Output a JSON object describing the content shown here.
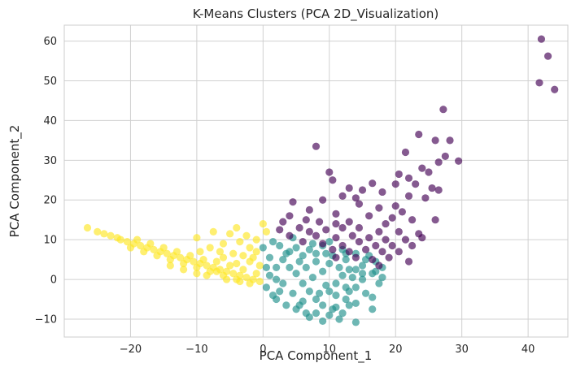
{
  "chart_data": {
    "type": "scatter",
    "title": "K-Means Clusters (PCA 2D_Visualization)",
    "xlabel": "PCA Component_1",
    "ylabel": "PCA Component_2",
    "xlim": [
      -30,
      46
    ],
    "ylim": [
      -14.5,
      64
    ],
    "xticks": [
      -20,
      -10,
      0,
      10,
      20,
      30,
      40
    ],
    "yticks": [
      -10,
      0,
      10,
      20,
      30,
      40,
      50,
      60
    ],
    "grid": true,
    "legend": "none",
    "series": [
      {
        "color": "#440154",
        "points": [
          [
            42,
            60.5
          ],
          [
            43,
            56.2
          ],
          [
            41.7,
            49.5
          ],
          [
            44,
            47.8
          ],
          [
            27.2,
            42.8
          ],
          [
            23.5,
            36.5
          ],
          [
            26,
            35
          ],
          [
            28.2,
            35
          ],
          [
            27.5,
            31
          ],
          [
            29.5,
            29.8
          ],
          [
            26.5,
            29.5
          ],
          [
            8,
            33.5
          ],
          [
            21.5,
            32
          ],
          [
            24,
            28
          ],
          [
            25,
            27
          ],
          [
            20.5,
            26.5
          ],
          [
            22,
            25.5
          ],
          [
            10,
            27
          ],
          [
            16.5,
            24.2
          ],
          [
            20,
            24
          ],
          [
            23,
            24
          ],
          [
            25.5,
            23
          ],
          [
            10.5,
            25
          ],
          [
            13,
            23
          ],
          [
            15,
            22.5
          ],
          [
            18,
            22
          ],
          [
            14,
            20.5
          ],
          [
            12,
            21
          ],
          [
            22,
            21
          ],
          [
            24.5,
            20.5
          ],
          [
            26.5,
            22.5
          ],
          [
            9,
            20
          ],
          [
            4.5,
            19.5
          ],
          [
            14.5,
            19
          ],
          [
            17.5,
            18
          ],
          [
            20,
            18.5
          ],
          [
            21,
            17
          ],
          [
            7,
            17.5
          ],
          [
            11,
            16.5
          ],
          [
            16,
            16
          ],
          [
            19.5,
            15.5
          ],
          [
            22.5,
            15
          ],
          [
            26,
            15
          ],
          [
            4,
            16
          ],
          [
            6.5,
            15
          ],
          [
            8.5,
            14.5
          ],
          [
            11,
            14
          ],
          [
            13,
            14.5
          ],
          [
            18.5,
            14
          ],
          [
            3,
            14.5
          ],
          [
            2.5,
            12.5
          ],
          [
            5.5,
            13
          ],
          [
            7,
            12
          ],
          [
            9.5,
            12.5
          ],
          [
            12,
            13
          ],
          [
            14.5,
            13
          ],
          [
            17.5,
            12
          ],
          [
            20.5,
            12
          ],
          [
            23.5,
            11.5
          ],
          [
            4,
            11
          ],
          [
            8,
            11
          ],
          [
            11,
            10.5
          ],
          [
            13.5,
            11
          ],
          [
            16,
            10.5
          ],
          [
            18.5,
            10
          ],
          [
            21.5,
            10
          ],
          [
            24,
            10.5
          ],
          [
            6,
            9.5
          ],
          [
            9,
            9
          ],
          [
            12,
            8.5
          ],
          [
            14.5,
            9.5
          ],
          [
            17,
            8.5
          ],
          [
            19.5,
            8.5
          ],
          [
            22.5,
            8.5
          ],
          [
            10.5,
            7.5
          ],
          [
            13,
            7
          ],
          [
            15.5,
            7.5
          ],
          [
            18,
            7
          ],
          [
            20.5,
            7
          ],
          [
            11,
            5.5
          ],
          [
            14,
            5.5
          ],
          [
            16.5,
            5
          ],
          [
            19,
            5.5
          ],
          [
            17.5,
            3.5
          ],
          [
            22,
            4.5
          ]
        ]
      },
      {
        "color": "#21918c",
        "points": [
          [
            2.5,
            8.5
          ],
          [
            0,
            8
          ],
          [
            1.5,
            9.5
          ],
          [
            4.5,
            10.5
          ],
          [
            5,
            8
          ],
          [
            7.5,
            9
          ],
          [
            9,
            8.5
          ],
          [
            10,
            9.5
          ],
          [
            12,
            7.5
          ],
          [
            14,
            6.5
          ],
          [
            3.5,
            6.5
          ],
          [
            6,
            6
          ],
          [
            8,
            6.5
          ],
          [
            10.5,
            6
          ],
          [
            16,
            6
          ],
          [
            12.5,
            5
          ],
          [
            17,
            4.5
          ],
          [
            18,
            3
          ],
          [
            15,
            3.5
          ],
          [
            14,
            2.5
          ],
          [
            16.5,
            1.5
          ],
          [
            18,
            0.5
          ],
          [
            15,
            0
          ],
          [
            17.5,
            -1
          ],
          [
            14,
            -2
          ],
          [
            15.5,
            -3.5
          ],
          [
            13,
            -3
          ],
          [
            12.5,
            -5
          ],
          [
            14,
            -6
          ],
          [
            16.5,
            -7.5
          ],
          [
            11,
            -7
          ],
          [
            12,
            -8.5
          ],
          [
            10,
            -9
          ],
          [
            11.5,
            -10
          ],
          [
            14,
            -10.8
          ],
          [
            8,
            -8.5
          ],
          [
            7,
            -9.5
          ],
          [
            9,
            -10.5
          ],
          [
            1,
            1
          ],
          [
            0.5,
            -2
          ],
          [
            1.5,
            -4
          ],
          [
            2,
            3
          ],
          [
            3,
            5
          ],
          [
            2,
            -5
          ],
          [
            3.5,
            -6.5
          ],
          [
            5,
            -7.5
          ],
          [
            6.5,
            -8.5
          ],
          [
            4,
            3
          ],
          [
            5,
            1.5
          ],
          [
            6,
            -1
          ],
          [
            7,
            -3
          ],
          [
            8,
            -5
          ],
          [
            9,
            -6.5
          ],
          [
            10,
            -3
          ],
          [
            11,
            -1
          ],
          [
            12,
            1
          ],
          [
            13,
            2.5
          ],
          [
            9,
            2
          ],
          [
            10,
            4
          ],
          [
            8,
            4.5
          ],
          [
            6.5,
            3
          ],
          [
            4.5,
            -3.5
          ],
          [
            3,
            -1
          ],
          [
            7.5,
            0.5
          ],
          [
            9.5,
            -1.5
          ],
          [
            11,
            -4
          ],
          [
            12.5,
            -2
          ],
          [
            13.5,
            0.5
          ],
          [
            15,
            1.5
          ],
          [
            11.5,
            3
          ],
          [
            8.5,
            -3.5
          ],
          [
            6,
            -5.5
          ],
          [
            2.5,
            -3
          ],
          [
            16.5,
            -4.5
          ],
          [
            13,
            -6.5
          ],
          [
            10.5,
            -7.5
          ],
          [
            5.5,
            -6.5
          ],
          [
            9.5,
            6.5
          ],
          [
            7,
            7.5
          ],
          [
            4,
            7
          ],
          [
            1,
            5.5
          ],
          [
            0.5,
            3
          ],
          [
            2,
            0
          ],
          [
            5.5,
            4.5
          ],
          [
            12.5,
            6.5
          ],
          [
            15.5,
            5
          ],
          [
            17,
            2
          ]
        ]
      },
      {
        "color": "#fde725",
        "points": [
          [
            -26.5,
            13
          ],
          [
            -25,
            12
          ],
          [
            -24,
            11.5
          ],
          [
            -23,
            11
          ],
          [
            -22,
            10.5
          ],
          [
            -21.5,
            10
          ],
          [
            -20.5,
            9.5
          ],
          [
            -19.5,
            9
          ],
          [
            -18.5,
            8.5
          ],
          [
            -17.5,
            8
          ],
          [
            -16.5,
            7.5
          ],
          [
            -15.5,
            7
          ],
          [
            -14.5,
            6.5
          ],
          [
            -13.5,
            6
          ],
          [
            -12.5,
            5.5
          ],
          [
            -11.5,
            5
          ],
          [
            -10.5,
            4.5
          ],
          [
            -9.5,
            4
          ],
          [
            -8.5,
            3.5
          ],
          [
            -7.5,
            3
          ],
          [
            -6.5,
            2.5
          ],
          [
            -5.5,
            2
          ],
          [
            -4.5,
            1.5
          ],
          [
            -3.5,
            1
          ],
          [
            -2.5,
            0.5
          ],
          [
            -1.5,
            0
          ],
          [
            -0.5,
            -0.5
          ],
          [
            -20,
            8
          ],
          [
            -18,
            7
          ],
          [
            -16,
            6
          ],
          [
            -14,
            5
          ],
          [
            -12,
            4
          ],
          [
            -10,
            3
          ],
          [
            -8,
            2
          ],
          [
            -6,
            1
          ],
          [
            -4,
            0
          ],
          [
            -2,
            -1
          ],
          [
            -11,
            6
          ],
          [
            -9,
            5
          ],
          [
            -7,
            4.5
          ],
          [
            -5,
            3.5
          ],
          [
            -3,
            2.5
          ],
          [
            -1,
            1.5
          ],
          [
            -13,
            7
          ],
          [
            -15,
            8
          ],
          [
            -17,
            9
          ],
          [
            -19,
            10
          ],
          [
            -10,
            10.5
          ],
          [
            -7.5,
            12
          ],
          [
            -6,
            9
          ],
          [
            -5,
            11.5
          ],
          [
            -4.5,
            6.5
          ],
          [
            -3.5,
            9.5
          ],
          [
            -2,
            8
          ],
          [
            -1.5,
            5.5
          ],
          [
            -0.5,
            3.5
          ],
          [
            -1,
            7
          ],
          [
            0,
            14
          ],
          [
            -2.5,
            11
          ],
          [
            -6.5,
            7
          ],
          [
            -8,
            8
          ],
          [
            -9.5,
            7
          ],
          [
            -3,
            6
          ],
          [
            -2,
            4.5
          ],
          [
            -4,
            4
          ],
          [
            -6,
            5.5
          ],
          [
            -7,
            2
          ],
          [
            -8.5,
            1
          ],
          [
            -5.5,
            0
          ],
          [
            -3.5,
            -0.5
          ],
          [
            -10,
            1.5
          ],
          [
            -12,
            2.5
          ],
          [
            -14,
            3.5
          ],
          [
            -1,
            10
          ],
          [
            0.5,
            12
          ],
          [
            -4,
            13
          ]
        ]
      }
    ]
  }
}
